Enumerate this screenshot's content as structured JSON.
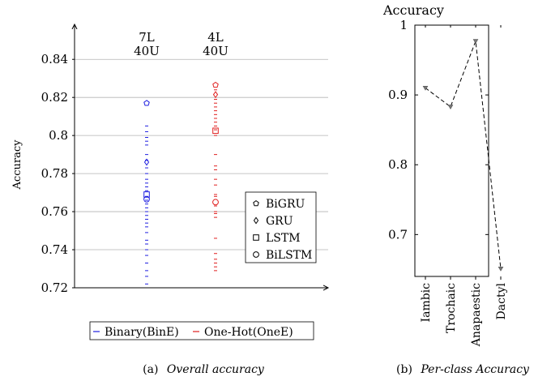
{
  "chart_data": [
    {
      "type": "scatter",
      "title": "",
      "xlabel": "",
      "ylabel": "Accuracy",
      "ylim": [
        0.72,
        0.855
      ],
      "yticks": [
        0.72,
        0.74,
        0.76,
        0.78,
        0.8,
        0.82,
        0.84
      ],
      "ytick_labels": [
        "0.72",
        "0.74",
        "0.76",
        "0.78",
        "0.8",
        "0.82",
        "0.84"
      ],
      "grid": true,
      "groups": [
        {
          "line1": "7L",
          "line2": "40U",
          "x": 1
        },
        {
          "line1": "4L",
          "line2": "40U",
          "x": 2
        }
      ],
      "series": [
        {
          "name": "Binary(BinE)",
          "color": "#1f1fe0",
          "group_x": 1,
          "dashes": [
            0.805,
            0.802,
            0.799,
            0.797,
            0.795,
            0.79,
            0.787,
            0.783,
            0.78,
            0.777,
            0.775,
            0.773,
            0.771,
            0.768,
            0.766,
            0.764,
            0.762,
            0.76,
            0.758,
            0.756,
            0.754,
            0.752,
            0.749,
            0.745,
            0.743,
            0.74,
            0.737,
            0.733,
            0.729,
            0.726,
            0.722,
            0.72
          ],
          "models": {
            "BiGRU": 0.817,
            "GRU": 0.786,
            "LSTM": 0.769,
            "BiLSTM": 0.7665
          }
        },
        {
          "name": "One-Hot(OneE)",
          "color": "#e01f1f",
          "group_x": 2,
          "dashes": [
            0.824,
            0.819,
            0.817,
            0.815,
            0.813,
            0.811,
            0.809,
            0.807,
            0.805,
            0.803,
            0.8,
            0.79,
            0.784,
            0.782,
            0.777,
            0.774,
            0.769,
            0.768,
            0.763,
            0.76,
            0.759,
            0.757,
            0.746,
            0.738,
            0.735,
            0.733,
            0.731,
            0.729
          ],
          "models": {
            "BiGRU": 0.8265,
            "GRU": 0.8215,
            "LSTM": 0.8025,
            "BiLSTM": 0.765
          }
        }
      ],
      "marker_legend": [
        {
          "label": "BiGRU",
          "marker": "pentagon"
        },
        {
          "label": "GRU",
          "marker": "diamond"
        },
        {
          "label": "LSTM",
          "marker": "square"
        },
        {
          "label": "BiLSTM",
          "marker": "circle"
        }
      ],
      "legend_position": "bottom"
    },
    {
      "type": "line",
      "title": "",
      "ylabel": "Accuracy",
      "categories": [
        "Iambic",
        "Trochaic",
        "Anapaestic",
        "Dactyl"
      ],
      "values": [
        0.91,
        0.883,
        0.977,
        0.651
      ],
      "ylim": [
        0.64,
        1.0
      ],
      "yticks": [
        0.7,
        0.8,
        0.9,
        1.0
      ],
      "ytick_labels": [
        "0.7",
        "0.8",
        "0.9",
        "1"
      ],
      "line_style": "dashed",
      "grid": false
    }
  ],
  "captions": [
    {
      "tag": "(a)",
      "text": "Overall accuracy"
    },
    {
      "tag": "(b)",
      "text": "Per-class Accuracy"
    }
  ]
}
